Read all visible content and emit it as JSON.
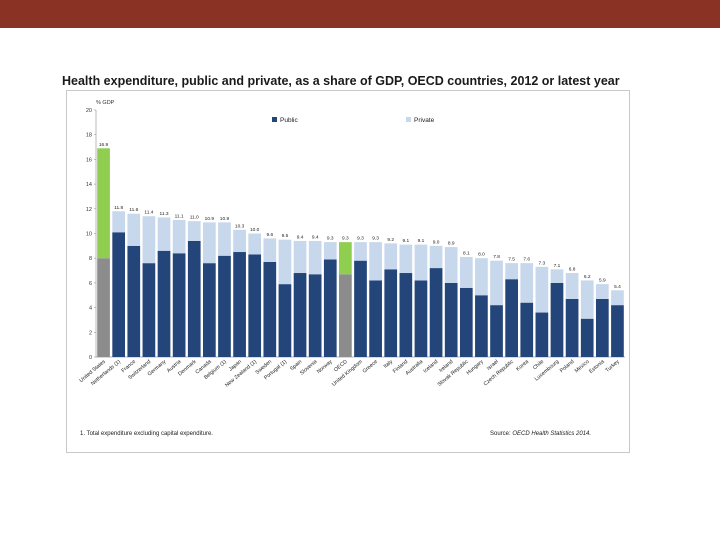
{
  "header": {
    "bar_color": "#8a3324"
  },
  "chart_data": {
    "type": "bar",
    "stacked": true,
    "title": "Health expenditure, public and private, as a share of GDP, OECD countries, 2012 or latest year",
    "ylabel": "% GDP",
    "ylim": [
      0,
      20
    ],
    "yticks": [
      0,
      2,
      4,
      6,
      8,
      10,
      12,
      14,
      16,
      18,
      20
    ],
    "legend": [
      {
        "name": "Public",
        "color": "#23457a"
      },
      {
        "name": "Private",
        "color": "#c7d7ec"
      }
    ],
    "highlight_colors": {
      "public": "#8c8c8c",
      "private": "#8fce4f"
    },
    "highlighted": [
      "United States",
      "OECD"
    ],
    "categories": [
      "United States",
      "Netherlands (1)",
      "France",
      "Switzerland",
      "Germany",
      "Austria",
      "Denmark",
      "Canada",
      "Belgium (1)",
      "Japan",
      "New Zealand (1)",
      "Sweden",
      "Portugal (1)",
      "Spain",
      "Slovenia",
      "Norway",
      "OECD",
      "United Kingdom",
      "Greece",
      "Italy",
      "Finland",
      "Australia",
      "Iceland",
      "Ireland",
      "Slovak Republic",
      "Hungary",
      "Israel",
      "Czech Republic",
      "Korea",
      "Chile",
      "Luxembourg",
      "Poland",
      "Mexico",
      "Estonia",
      "Turkey"
    ],
    "series": [
      {
        "name": "Public",
        "values": [
          8.0,
          10.1,
          9.0,
          7.6,
          8.6,
          8.4,
          9.4,
          7.6,
          8.2,
          8.5,
          8.3,
          7.7,
          5.9,
          6.8,
          6.7,
          7.9,
          6.7,
          7.8,
          6.2,
          7.1,
          6.8,
          6.2,
          7.2,
          6.0,
          5.6,
          5.0,
          4.2,
          6.3,
          4.4,
          3.6,
          6.0,
          4.7,
          3.1,
          4.7,
          4.2
        ]
      },
      {
        "name": "Private",
        "values": [
          8.9,
          1.7,
          2.6,
          3.8,
          2.7,
          2.7,
          1.6,
          3.3,
          2.7,
          1.8,
          1.7,
          1.9,
          3.6,
          2.6,
          2.7,
          1.4,
          2.6,
          1.5,
          3.1,
          2.1,
          2.3,
          2.9,
          1.8,
          2.9,
          2.5,
          3.0,
          3.6,
          1.3,
          3.2,
          3.7,
          1.1,
          2.1,
          3.1,
          1.2,
          1.2
        ]
      }
    ],
    "data_labels": [
      "16.9",
      "11.8",
      "11.6",
      "11.4",
      "11.3",
      "11.1",
      "11.0",
      "10.9",
      "10.9",
      "10.3",
      "10.0",
      "9.6",
      "9.5",
      "9.4",
      "9.4",
      "9.3",
      "9.3",
      "9.3",
      "9.3",
      "9.2",
      "9.1",
      "9.1",
      "9.0",
      "8.9",
      "8.1",
      "8.0",
      "7.8",
      "7.5",
      "7.6",
      "7.3",
      "7.1",
      "6.8",
      "6.2",
      "5.9",
      "5.4"
    ],
    "footnote": "1. Total expenditure excluding capital expenditure.",
    "source_prefix": "Source:",
    "source_title": "OECD Health Statistics 2014."
  }
}
